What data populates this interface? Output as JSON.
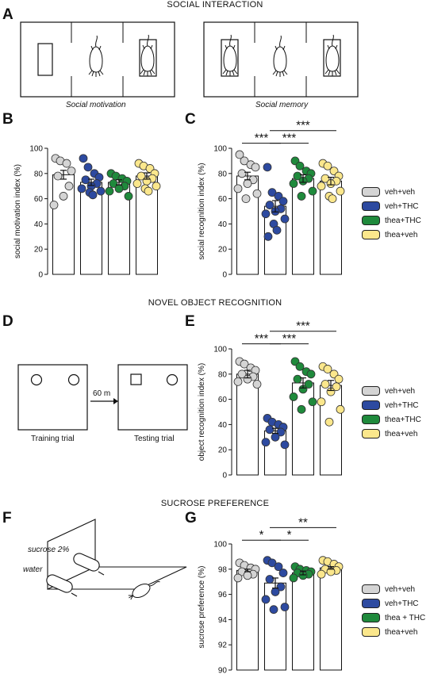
{
  "sections": {
    "social_interaction": "SOCIAL INTERACTION",
    "novel_object_recognition": "NOVEL OBJECT RECOGNITION",
    "sucrose_preference": "SUCROSE PREFERENCE"
  },
  "panel_letters": {
    "A": "A",
    "B": "B",
    "C": "C",
    "D": "D",
    "E": "E",
    "F": "F",
    "G": "G"
  },
  "panel_A": {
    "caption_left": "Social motivation",
    "caption_right": "Social memory"
  },
  "panel_D": {
    "delay_label": "60 m",
    "training_label": "Training trial",
    "testing_label": "Testing trial"
  },
  "panel_F": {
    "sucrose_label": "sucrose 2%",
    "water_label": "water"
  },
  "colors": {
    "gray": "#d4d4d4",
    "blue": "#2d4aa0",
    "green": "#1f8a3c",
    "yellow": "#fbe78c"
  },
  "legends": {
    "C": [
      "veh+veh",
      "veh+THC",
      "thea+THC",
      "thea+veh"
    ],
    "E": [
      "veh+veh",
      "veh+THC",
      "thea+THC",
      "thea+veh"
    ],
    "G": [
      "veh+veh",
      "veh+THC",
      "thea + THC",
      "thea+veh"
    ]
  },
  "chart_data": [
    {
      "panel": "B",
      "type": "bar",
      "ylabel": "social motivation index (%)",
      "ylim": [
        0,
        100
      ],
      "yticks": [
        0,
        20,
        40,
        60,
        80,
        100
      ],
      "means": [
        79,
        73,
        73,
        78
      ],
      "sem": [
        3.5,
        2.5,
        2,
        2.5
      ],
      "points": [
        [
          92,
          90,
          88,
          82,
          78,
          70,
          62,
          55
        ],
        [
          92,
          85,
          80,
          77,
          75,
          72,
          70,
          68,
          66,
          65,
          63
        ],
        [
          80,
          78,
          76,
          74,
          72,
          70,
          68,
          66,
          62
        ],
        [
          88,
          86,
          84,
          80,
          78,
          76,
          74,
          72,
          70,
          68,
          66
        ]
      ],
      "significance": []
    },
    {
      "panel": "C",
      "type": "bar",
      "ylabel": "social recognition index (%)",
      "ylim": [
        0,
        100
      ],
      "yticks": [
        0,
        20,
        40,
        60,
        80,
        100
      ],
      "means": [
        78,
        54,
        76,
        74
      ],
      "sem": [
        3,
        4.5,
        3,
        3
      ],
      "points": [
        [
          95,
          90,
          87,
          85,
          80,
          75,
          72,
          68,
          64,
          60
        ],
        [
          85,
          65,
          62,
          58,
          55,
          52,
          50,
          48,
          44,
          40,
          35,
          30
        ],
        [
          90,
          86,
          82,
          80,
          78,
          76,
          74,
          72,
          66,
          62
        ],
        [
          88,
          86,
          82,
          78,
          76,
          74,
          72,
          70,
          66,
          62,
          60
        ]
      ],
      "significance": [
        {
          "from": 0,
          "to": 1,
          "label": "***",
          "y": 104
        },
        {
          "from": 1,
          "to": 2,
          "label": "***",
          "y": 104
        },
        {
          "from": 1,
          "to": 3,
          "label": "***",
          "y": 114
        }
      ]
    },
    {
      "panel": "E",
      "type": "bar",
      "ylabel": "object recognition index (%)",
      "ylim": [
        0,
        100
      ],
      "yticks": [
        0,
        20,
        40,
        60,
        80,
        100
      ],
      "means": [
        80,
        35,
        73,
        71
      ],
      "sem": [
        3,
        2,
        4,
        4
      ],
      "points": [
        [
          90,
          88,
          85,
          83,
          80,
          78,
          76,
          74,
          72
        ],
        [
          45,
          42,
          40,
          38,
          36,
          34,
          30,
          26,
          24
        ],
        [
          90,
          86,
          82,
          80,
          76,
          72,
          68,
          62,
          58,
          52
        ],
        [
          86,
          84,
          80,
          76,
          72,
          70,
          66,
          58,
          52,
          42
        ]
      ],
      "significance": [
        {
          "from": 0,
          "to": 1,
          "label": "***",
          "y": 104
        },
        {
          "from": 1,
          "to": 2,
          "label": "***",
          "y": 104
        },
        {
          "from": 1,
          "to": 3,
          "label": "***",
          "y": 114
        }
      ]
    },
    {
      "panel": "G",
      "type": "bar",
      "ylabel": "sucrose preference (%)",
      "ylim": [
        90,
        100
      ],
      "yticks": [
        90,
        92,
        94,
        96,
        98,
        100
      ],
      "means": [
        97.9,
        96.9,
        97.7,
        98.1
      ],
      "sem": [
        0.1,
        0.4,
        0.15,
        0.1
      ],
      "points": [
        [
          98.5,
          98.3,
          98.1,
          98.0,
          97.8,
          97.6,
          97.5,
          97.3
        ],
        [
          98.7,
          98.5,
          98.2,
          97.7,
          97.2,
          96.6,
          96.2,
          95.6,
          95.0,
          94.8
        ],
        [
          98.2,
          98.0,
          97.9,
          97.8,
          97.7,
          97.6,
          97.5,
          97.3
        ],
        [
          98.7,
          98.6,
          98.4,
          98.2,
          98.0,
          97.9,
          97.8,
          97.6
        ]
      ],
      "significance": [
        {
          "from": 0,
          "to": 1,
          "label": "*",
          "y": 100.3
        },
        {
          "from": 1,
          "to": 2,
          "label": "*",
          "y": 100.3
        },
        {
          "from": 1,
          "to": 3,
          "label": "**",
          "y": 101.3
        }
      ]
    }
  ]
}
